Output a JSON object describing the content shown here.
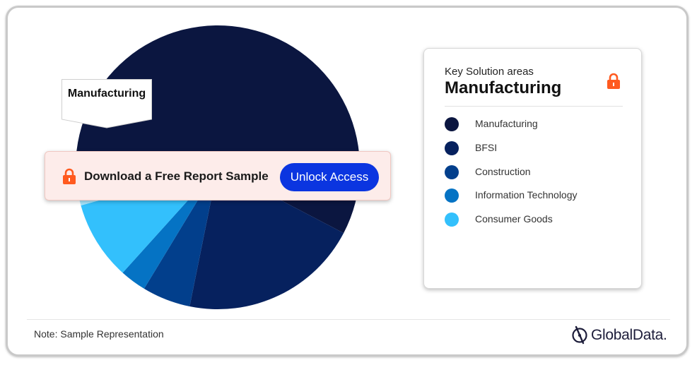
{
  "chart_data": {
    "type": "pie",
    "title": "",
    "slices": [
      {
        "label": "Manufacturing",
        "value": 58.5,
        "color": "#0b1640"
      },
      {
        "label": "BFSI",
        "value": 20.5,
        "color": "#06215e"
      },
      {
        "label": "Construction",
        "value": 5.5,
        "color": "#023f8c"
      },
      {
        "label": "Information Technology",
        "value": 3.0,
        "color": "#0573c4"
      },
      {
        "label": "Consumer Goods",
        "value": 9.0,
        "color": "#33c0fc"
      },
      {
        "label": "",
        "value": 3.5,
        "color": "#a9e6fd"
      }
    ],
    "legend": "right"
  },
  "callout": {
    "label": "Manufacturing"
  },
  "banner": {
    "text": "Download a Free Report Sample",
    "button_label": "Unlock Access",
    "lock_icon": "lock-icon",
    "accent_color": "#ff5a1f",
    "button_color": "#0b35e0"
  },
  "legend": {
    "subtitle": "Key Solution areas",
    "title": "Manufacturing",
    "lock_icon": "lock-icon",
    "items": [
      {
        "label": "Manufacturing",
        "color": "#0b1640"
      },
      {
        "label": "BFSI",
        "color": "#06215e"
      },
      {
        "label": "Construction",
        "color": "#023f8c"
      },
      {
        "label": "Information Technology",
        "color": "#0573c4"
      },
      {
        "label": "Consumer Goods",
        "color": "#33c0fc"
      }
    ]
  },
  "footer": {
    "note": "Note: Sample Representation",
    "logo_text": "GlobalData."
  }
}
